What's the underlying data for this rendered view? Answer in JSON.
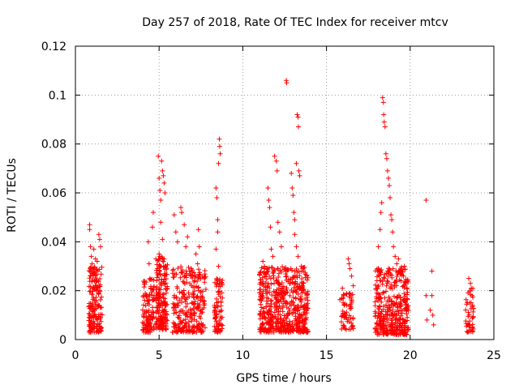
{
  "chart_data": {
    "type": "scatter",
    "title": "Day 257 of 2018, Rate Of TEC Index for receiver mtcv",
    "xlabel": "GPS time / hours",
    "ylabel": "ROTI / TECUs",
    "xlim": [
      0,
      25
    ],
    "ylim": [
      0,
      0.12
    ],
    "xticks": [
      0,
      5,
      10,
      15,
      20,
      25
    ],
    "yticks": [
      0,
      0.02,
      0.04,
      0.06,
      0.08,
      0.1,
      0.12
    ],
    "xtick_labels": [
      "0",
      "5",
      "10",
      "15",
      "20",
      "25"
    ],
    "ytick_labels": [
      "0",
      "0.02",
      "0.04",
      "0.06",
      "0.08",
      "0.1",
      "0.12"
    ],
    "grid": true,
    "marker": "+",
    "color": "#ff0000",
    "points": [
      [
        0.85,
        0.047
      ],
      [
        0.85,
        0.045
      ],
      [
        0.9,
        0.038
      ],
      [
        0.95,
        0.034
      ],
      [
        1.0,
        0.031
      ],
      [
        1.05,
        0.026
      ],
      [
        1.1,
        0.037
      ],
      [
        1.2,
        0.033
      ],
      [
        1.3,
        0.032
      ],
      [
        1.4,
        0.043
      ],
      [
        1.45,
        0.041
      ],
      [
        1.5,
        0.038
      ],
      [
        1.35,
        0.028
      ],
      [
        1.25,
        0.022
      ],
      [
        4.35,
        0.04
      ],
      [
        4.4,
        0.031
      ],
      [
        4.45,
        0.025
      ],
      [
        4.5,
        0.021
      ],
      [
        4.6,
        0.046
      ],
      [
        4.65,
        0.052
      ],
      [
        4.7,
        0.018
      ],
      [
        4.95,
        0.075
      ],
      [
        5.0,
        0.066
      ],
      [
        5.05,
        0.061
      ],
      [
        5.1,
        0.057
      ],
      [
        5.15,
        0.073
      ],
      [
        5.2,
        0.069
      ],
      [
        5.25,
        0.067
      ],
      [
        5.3,
        0.064
      ],
      [
        5.35,
        0.06
      ],
      [
        5.1,
        0.048
      ],
      [
        5.2,
        0.041
      ],
      [
        5.0,
        0.035
      ],
      [
        5.3,
        0.033
      ],
      [
        4.9,
        0.029
      ],
      [
        5.9,
        0.051
      ],
      [
        6.0,
        0.044
      ],
      [
        6.1,
        0.04
      ],
      [
        6.3,
        0.054
      ],
      [
        6.35,
        0.052
      ],
      [
        6.5,
        0.047
      ],
      [
        6.6,
        0.038
      ],
      [
        6.7,
        0.042
      ],
      [
        7.2,
        0.035
      ],
      [
        7.3,
        0.031
      ],
      [
        7.35,
        0.045
      ],
      [
        7.4,
        0.038
      ],
      [
        6.8,
        0.028
      ],
      [
        7.0,
        0.026
      ],
      [
        8.4,
        0.062
      ],
      [
        8.45,
        0.058
      ],
      [
        8.5,
        0.049
      ],
      [
        8.55,
        0.072
      ],
      [
        8.6,
        0.082
      ],
      [
        8.62,
        0.079
      ],
      [
        8.65,
        0.076
      ],
      [
        8.5,
        0.044
      ],
      [
        8.4,
        0.037
      ],
      [
        8.55,
        0.03
      ],
      [
        11.2,
        0.032
      ],
      [
        11.3,
        0.029
      ],
      [
        11.4,
        0.027
      ],
      [
        11.5,
        0.062
      ],
      [
        11.55,
        0.057
      ],
      [
        11.6,
        0.054
      ],
      [
        11.65,
        0.046
      ],
      [
        11.7,
        0.037
      ],
      [
        11.8,
        0.034
      ],
      [
        11.9,
        0.075
      ],
      [
        12.0,
        0.073
      ],
      [
        12.05,
        0.069
      ],
      [
        12.1,
        0.048
      ],
      [
        12.2,
        0.044
      ],
      [
        12.3,
        0.038
      ],
      [
        12.6,
        0.106
      ],
      [
        12.62,
        0.105
      ],
      [
        12.9,
        0.068
      ],
      [
        12.95,
        0.062
      ],
      [
        13.0,
        0.059
      ],
      [
        13.05,
        0.052
      ],
      [
        13.1,
        0.049
      ],
      [
        13.2,
        0.072
      ],
      [
        13.25,
        0.092
      ],
      [
        13.3,
        0.091
      ],
      [
        13.32,
        0.087
      ],
      [
        13.35,
        0.069
      ],
      [
        13.4,
        0.067
      ],
      [
        13.1,
        0.043
      ],
      [
        13.2,
        0.038
      ],
      [
        13.3,
        0.034
      ],
      [
        13.5,
        0.03
      ],
      [
        13.6,
        0.028
      ],
      [
        15.95,
        0.021
      ],
      [
        16.0,
        0.017
      ],
      [
        16.05,
        0.014
      ],
      [
        16.3,
        0.033
      ],
      [
        16.35,
        0.031
      ],
      [
        16.4,
        0.029
      ],
      [
        16.5,
        0.026
      ],
      [
        16.6,
        0.022
      ],
      [
        16.4,
        0.019
      ],
      [
        18.1,
        0.038
      ],
      [
        18.2,
        0.045
      ],
      [
        18.25,
        0.052
      ],
      [
        18.3,
        0.056
      ],
      [
        18.35,
        0.099
      ],
      [
        18.4,
        0.097
      ],
      [
        18.42,
        0.092
      ],
      [
        18.45,
        0.089
      ],
      [
        18.5,
        0.087
      ],
      [
        18.55,
        0.076
      ],
      [
        18.6,
        0.074
      ],
      [
        18.65,
        0.069
      ],
      [
        18.7,
        0.066
      ],
      [
        18.75,
        0.063
      ],
      [
        18.8,
        0.058
      ],
      [
        18.85,
        0.051
      ],
      [
        18.9,
        0.049
      ],
      [
        18.95,
        0.044
      ],
      [
        19.0,
        0.038
      ],
      [
        19.1,
        0.034
      ],
      [
        19.2,
        0.031
      ],
      [
        19.3,
        0.033
      ],
      [
        19.45,
        0.027
      ],
      [
        19.6,
        0.026
      ],
      [
        18.05,
        0.028
      ],
      [
        18.15,
        0.026
      ],
      [
        20.95,
        0.057
      ],
      [
        20.95,
        0.018
      ],
      [
        21.0,
        0.008
      ],
      [
        21.3,
        0.028
      ],
      [
        21.3,
        0.018
      ],
      [
        21.35,
        0.01
      ],
      [
        21.4,
        0.006
      ],
      [
        21.2,
        0.012
      ],
      [
        23.5,
        0.025
      ],
      [
        23.6,
        0.023
      ],
      [
        23.65,
        0.021
      ],
      [
        23.7,
        0.018
      ],
      [
        23.55,
        0.015
      ]
    ],
    "dense_clusters": [
      {
        "x": [
          0.8,
          1.6
        ],
        "y": [
          0.003,
          0.03
        ],
        "n": 170
      },
      {
        "x": [
          4.0,
          4.7
        ],
        "y": [
          0.003,
          0.025
        ],
        "n": 110
      },
      {
        "x": [
          4.8,
          5.5
        ],
        "y": [
          0.004,
          0.034
        ],
        "n": 180
      },
      {
        "x": [
          5.8,
          7.8
        ],
        "y": [
          0.003,
          0.03
        ],
        "n": 260
      },
      {
        "x": [
          8.3,
          8.8
        ],
        "y": [
          0.003,
          0.026
        ],
        "n": 80
      },
      {
        "x": [
          11.0,
          12.5
        ],
        "y": [
          0.003,
          0.03
        ],
        "n": 300
      },
      {
        "x": [
          12.5,
          13.9
        ],
        "y": [
          0.003,
          0.03
        ],
        "n": 280
      },
      {
        "x": [
          15.8,
          16.6
        ],
        "y": [
          0.004,
          0.019
        ],
        "n": 60
      },
      {
        "x": [
          17.9,
          19.9
        ],
        "y": [
          0.002,
          0.03
        ],
        "n": 380
      },
      {
        "x": [
          23.3,
          23.8
        ],
        "y": [
          0.003,
          0.021
        ],
        "n": 45
      }
    ]
  }
}
